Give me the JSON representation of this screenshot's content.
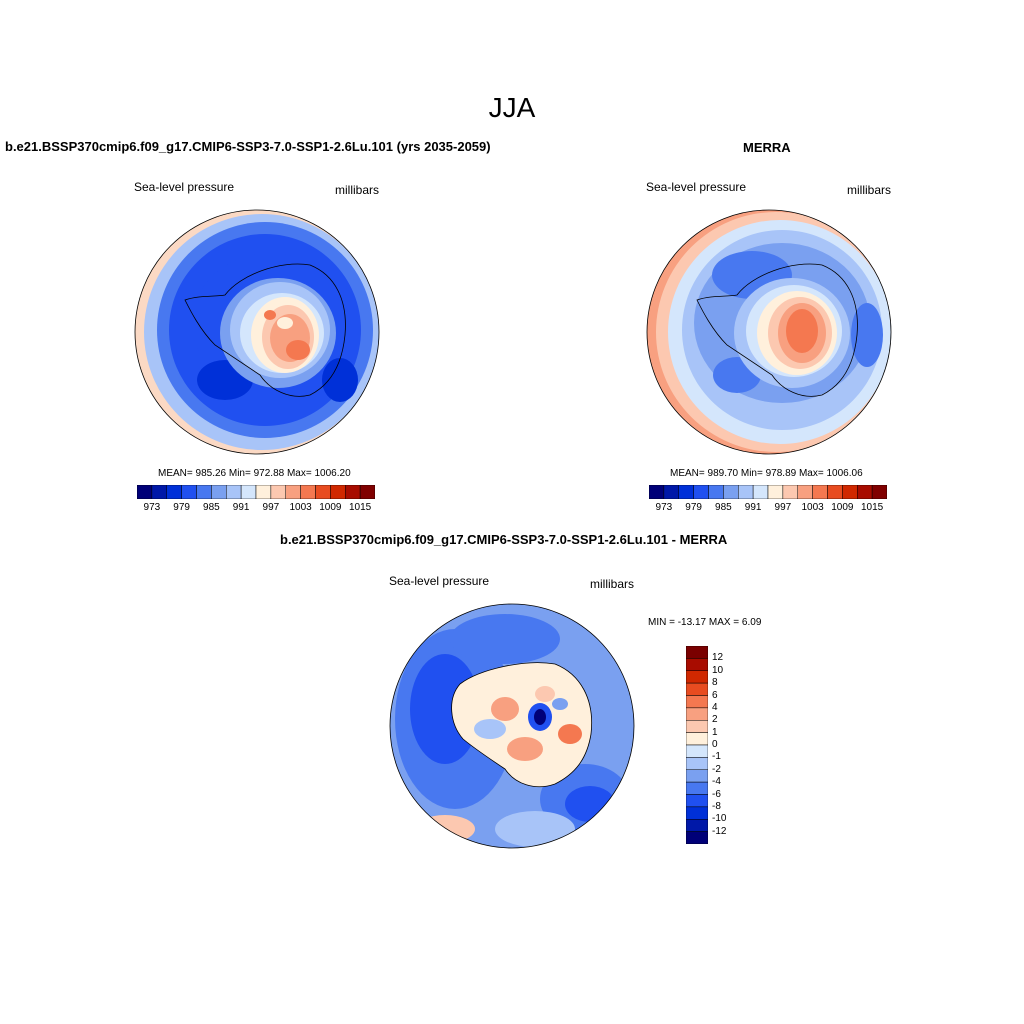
{
  "main_title": "JJA",
  "panels": [
    {
      "title": "b.e21.BSSP370cmip6.f09_g17.CMIP6-SSP3-7.0-SSP1-2.6Lu.101 (yrs 2035-2059)",
      "left_label": "Sea-level pressure",
      "right_label": "millibars",
      "stats": "MEAN= 985.26  Min= 972.88  Max= 1006.20",
      "colorbar_ticks": [
        "973",
        "979",
        "985",
        "991",
        "997",
        "1003",
        "1009",
        "1015"
      ]
    },
    {
      "title": "MERRA",
      "left_label": "Sea-level pressure",
      "right_label": "millibars",
      "stats": "MEAN= 989.70  Min= 978.89  Max= 1006.06",
      "colorbar_ticks": [
        "973",
        "979",
        "985",
        "991",
        "997",
        "1003",
        "1009",
        "1015"
      ]
    },
    {
      "title": "b.e21.BSSP370cmip6.f09_g17.CMIP6-SSP3-7.0-SSP1-2.6Lu.101 - MERRA",
      "left_label": "Sea-level pressure",
      "right_label": "millibars",
      "stats": "MIN = -13.17 MAX =   6.09",
      "colorbar_ticks": [
        "12",
        "10",
        "8",
        "6",
        "4",
        "2",
        "1",
        "0",
        "-1",
        "-2",
        "-4",
        "-6",
        "-8",
        "-10",
        "-12"
      ]
    }
  ],
  "colors": {
    "abs_scale": [
      "#000078",
      "#0018a8",
      "#0030d8",
      "#2050f0",
      "#4878f0",
      "#7aa0f0",
      "#a8c4f8",
      "#d4e6fc",
      "#fff0dc",
      "#fcc8b0",
      "#f8a080",
      "#f47850",
      "#e84c20",
      "#d02800",
      "#a80c00",
      "#800000"
    ],
    "diff_scale": [
      "#7a0000",
      "#a80c00",
      "#d02800",
      "#e84c20",
      "#f47850",
      "#f8a080",
      "#fcc8b0",
      "#fff0dc",
      "#d4e6fc",
      "#a8c4f8",
      "#7aa0f0",
      "#4878f0",
      "#2050f0",
      "#0030d8",
      "#0018a8",
      "#000078"
    ]
  }
}
